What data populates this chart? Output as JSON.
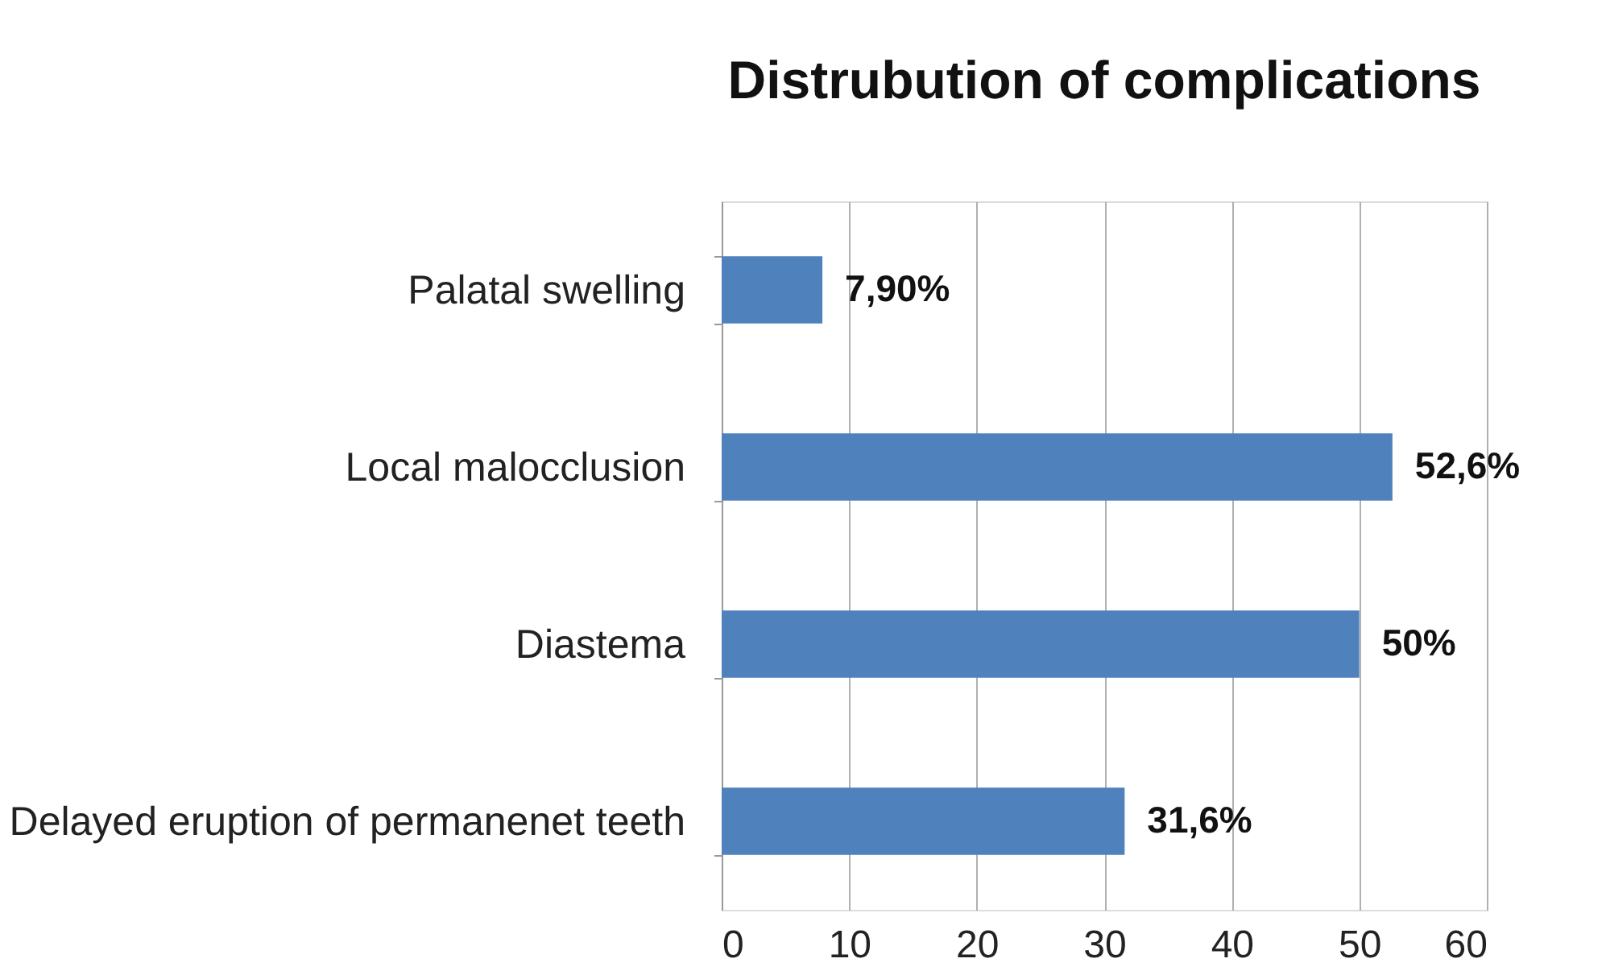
{
  "chart_data": {
    "type": "bar",
    "orientation": "horizontal",
    "title": "Distrubution of complications",
    "categories": [
      "Palatal swelling",
      "Local malocclusion",
      "Diastema",
      "Delayed eruption of permanenet teeth"
    ],
    "values": [
      7.9,
      52.6,
      50,
      31.6
    ],
    "value_labels": [
      "7,90%",
      "52,6%",
      "50%",
      "31,6%"
    ],
    "color": "#4f81bd",
    "xlim": [
      0,
      60
    ],
    "xticks": [
      0,
      10,
      20,
      30,
      40,
      50,
      60
    ],
    "grid": "x"
  }
}
